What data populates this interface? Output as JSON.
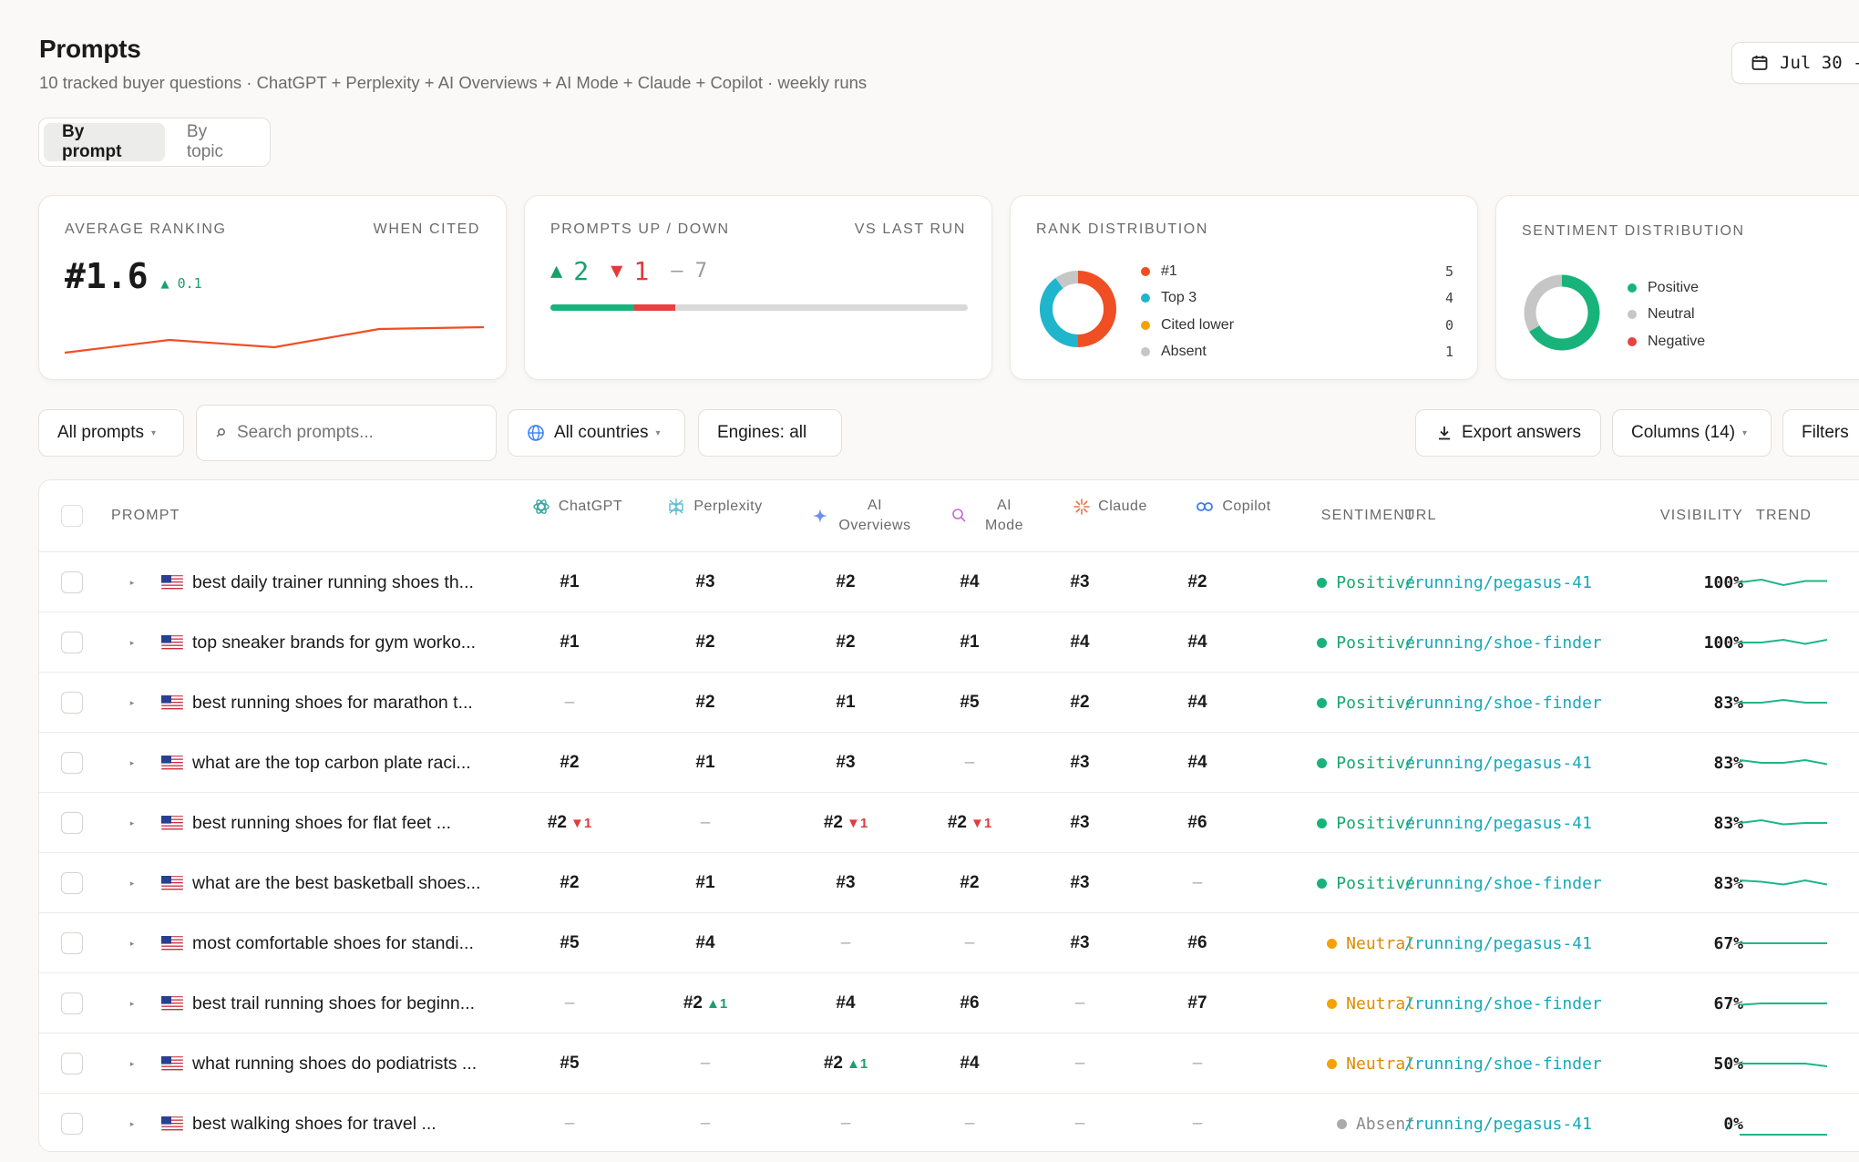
{
  "header": {
    "title": "Prompts",
    "subtitle": "10 tracked buyer questions · ChatGPT + Perplexity + AI Overviews + AI Mode + Claude + Copilot · weekly runs",
    "date_label": "Jul 30 -"
  },
  "view_toggle": {
    "active": "By prompt",
    "inactive": "By topic"
  },
  "cards": {
    "avg_ranking": {
      "label": "AVERAGE RANKING",
      "sub": "WHEN CITED",
      "value": "#1.6",
      "delta": "▲ 0.1",
      "trend": [
        0.2,
        0.55,
        0.35,
        0.85,
        0.9
      ]
    },
    "prompts_updown": {
      "label": "PROMPTS UP / DOWN",
      "sub": "VS LAST RUN",
      "up": "2",
      "down": "1",
      "flat": "– 7",
      "up_count": 2,
      "down_count": 1,
      "flat_count": 7
    },
    "rank_dist": {
      "label": "RANK DISTRIBUTION",
      "items": [
        {
          "name": "#1",
          "value": "5",
          "color": "#f04e23"
        },
        {
          "name": "Top 3",
          "value": "4",
          "color": "#1fb5cc"
        },
        {
          "name": "Cited lower",
          "value": "0",
          "color": "#f5a100"
        },
        {
          "name": "Absent",
          "value": "1",
          "color": "#c6c6c6"
        }
      ]
    },
    "sentiment_dist": {
      "label": "SENTIMENT DISTRIBUTION",
      "items": [
        {
          "name": "Positive",
          "count": 6,
          "color": "#17b37b"
        },
        {
          "name": "Neutral",
          "count": 3,
          "color": "#c6c6c6"
        },
        {
          "name": "Negative",
          "count": 0,
          "color": "#e84141"
        }
      ]
    }
  },
  "toolbar": {
    "all_prompts": "All prompts",
    "search_placeholder": "Search prompts...",
    "countries": "All countries",
    "engines": "Engines: all",
    "export": "Export answers",
    "columns": "Columns (14)",
    "filters": "Filters"
  },
  "table": {
    "headers": {
      "prompt": "PROMPT",
      "chatgpt": "ChatGPT",
      "perplexity": "Perplexity",
      "aio_1": "AI",
      "aio_2": "Overviews",
      "aim_1": "AI",
      "aim_2": "Mode",
      "claude": "Claude",
      "copilot": "Copilot",
      "sentiment": "SENTIMENT",
      "url": "URL",
      "visibility": "VISIBILITY",
      "trend": "TREND"
    },
    "rows": [
      {
        "prompt": "best daily trainer running shoes th...",
        "ranks": [
          [
            "#1",
            ""
          ],
          [
            "#3",
            ""
          ],
          [
            "#2",
            ""
          ],
          [
            "#4",
            ""
          ],
          [
            "#3",
            ""
          ],
          [
            "#2",
            ""
          ]
        ],
        "sentiment": "Positive",
        "url": "/running/pegasus-41",
        "visibility": "100%",
        "trend": [
          0.5,
          0.6,
          0.4,
          0.55,
          0.55
        ]
      },
      {
        "prompt": "top sneaker brands for gym worko...",
        "ranks": [
          [
            "#1",
            ""
          ],
          [
            "#2",
            ""
          ],
          [
            "#2",
            ""
          ],
          [
            "#1",
            ""
          ],
          [
            "#4",
            ""
          ],
          [
            "#4",
            ""
          ]
        ],
        "sentiment": "Positive",
        "url": "/running/shoe-finder",
        "visibility": "100%",
        "trend": [
          0.5,
          0.5,
          0.6,
          0.45,
          0.6
        ]
      },
      {
        "prompt": "best running shoes for marathon t...",
        "ranks": [
          [
            "–",
            ""
          ],
          [
            "#2",
            ""
          ],
          [
            "#1",
            ""
          ],
          [
            "#5",
            ""
          ],
          [
            "#2",
            ""
          ],
          [
            "#4",
            ""
          ]
        ],
        "sentiment": "Positive",
        "url": "/running/shoe-finder",
        "visibility": "83%",
        "trend": [
          0.5,
          0.5,
          0.6,
          0.5,
          0.5
        ]
      },
      {
        "prompt": "what are the top carbon plate raci...",
        "ranks": [
          [
            "#2",
            ""
          ],
          [
            "#1",
            ""
          ],
          [
            "#3",
            ""
          ],
          [
            "–",
            ""
          ],
          [
            "#3",
            ""
          ],
          [
            "#4",
            ""
          ]
        ],
        "sentiment": "Positive",
        "url": "/running/pegasus-41",
        "visibility": "83%",
        "trend": [
          0.6,
          0.5,
          0.5,
          0.6,
          0.45
        ]
      },
      {
        "prompt": "best running shoes for flat feet ...",
        "ranks": [
          [
            "#2",
            "▼1"
          ],
          [
            "–",
            ""
          ],
          [
            "#2",
            "▼1"
          ],
          [
            "#2",
            "▼1"
          ],
          [
            "#3",
            ""
          ],
          [
            "#6",
            ""
          ]
        ],
        "sentiment": "Positive",
        "url": "/running/pegasus-41",
        "visibility": "83%",
        "trend": [
          0.5,
          0.6,
          0.45,
          0.5,
          0.5
        ]
      },
      {
        "prompt": "what are the best basketball shoes...",
        "ranks": [
          [
            "#2",
            ""
          ],
          [
            "#1",
            ""
          ],
          [
            "#3",
            ""
          ],
          [
            "#2",
            ""
          ],
          [
            "#3",
            ""
          ],
          [
            "–",
            ""
          ]
        ],
        "sentiment": "Positive",
        "url": "/running/shoe-finder",
        "visibility": "83%",
        "trend": [
          0.6,
          0.55,
          0.45,
          0.6,
          0.45
        ]
      },
      {
        "prompt": "most comfortable shoes for standi...",
        "ranks": [
          [
            "#5",
            ""
          ],
          [
            "#4",
            ""
          ],
          [
            "–",
            ""
          ],
          [
            "–",
            ""
          ],
          [
            "#3",
            ""
          ],
          [
            "#6",
            ""
          ]
        ],
        "sentiment": "Neutral",
        "url": "/running/pegasus-41",
        "visibility": "67%",
        "trend": [
          0.5,
          0.5,
          0.5,
          0.5,
          0.5
        ]
      },
      {
        "prompt": "best trail running shoes for beginn...",
        "ranks": [
          [
            "–",
            ""
          ],
          [
            "#2",
            "▲1"
          ],
          [
            "#4",
            ""
          ],
          [
            "#6",
            ""
          ],
          [
            "–",
            ""
          ],
          [
            "#7",
            ""
          ]
        ],
        "sentiment": "Neutral",
        "url": "/running/shoe-finder",
        "visibility": "67%",
        "trend": [
          0.45,
          0.5,
          0.5,
          0.5,
          0.5
        ]
      },
      {
        "prompt": "what running shoes do podiatrists ...",
        "ranks": [
          [
            "#5",
            ""
          ],
          [
            "–",
            ""
          ],
          [
            "#2",
            "▲1"
          ],
          [
            "#4",
            ""
          ],
          [
            "–",
            ""
          ],
          [
            "–",
            ""
          ]
        ],
        "sentiment": "Neutral",
        "url": "/running/shoe-finder",
        "visibility": "50%",
        "trend": [
          0.5,
          0.5,
          0.5,
          0.5,
          0.4
        ]
      },
      {
        "prompt": "best walking shoes for travel ...",
        "ranks": [
          [
            "–",
            ""
          ],
          [
            "–",
            ""
          ],
          [
            "–",
            ""
          ],
          [
            "–",
            ""
          ],
          [
            "–",
            ""
          ],
          [
            "–",
            ""
          ]
        ],
        "sentiment": "Absent",
        "url": "/running/pegasus-41",
        "visibility": "0%",
        "trend": [
          0.1,
          0.1,
          0.1,
          0.1,
          0.1
        ]
      }
    ]
  },
  "colors": {
    "positive": "#17a86e",
    "neutral": "#e08a00",
    "absent": "#8a8a8a",
    "url": "#18a9b8",
    "accent": "#f04e23",
    "up": "#1aa06b",
    "down": "#e03c3c",
    "spark": "#1fb58a"
  }
}
